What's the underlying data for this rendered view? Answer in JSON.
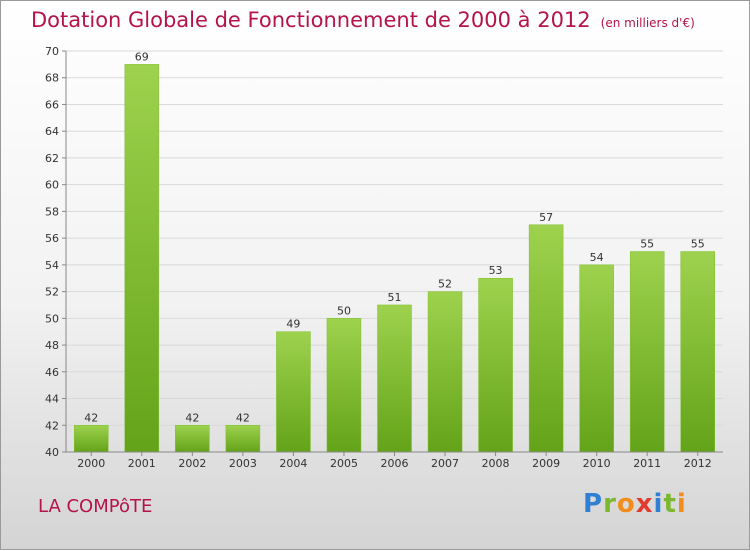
{
  "title": "Dotation Globale de Fonctionnement de 2000 à 2012",
  "subtitle": "(en milliers d'€)",
  "commune": "LA COMPôTE",
  "logo": {
    "letters": [
      "P",
      "r",
      "o",
      "x",
      "i",
      "t",
      "i"
    ],
    "colors": [
      "#2f7fd4",
      "#7cb82f",
      "#f28c1b",
      "#e23b2e",
      "#2f7fd4",
      "#7cb82f",
      "#f28c1b"
    ]
  },
  "colors": {
    "title": "#b5134b",
    "bar_top": "#9ed24e",
    "bar_bottom": "#63a319"
  },
  "chart_data": {
    "type": "bar",
    "categories": [
      "2000",
      "2001",
      "2002",
      "2003",
      "2004",
      "2005",
      "2006",
      "2007",
      "2008",
      "2009",
      "2010",
      "2011",
      "2012"
    ],
    "values": [
      42,
      69,
      42,
      42,
      49,
      50,
      51,
      52,
      53,
      57,
      54,
      55,
      55
    ],
    "ylim": [
      40,
      70
    ],
    "yticks": [
      40,
      42,
      44,
      46,
      48,
      50,
      52,
      54,
      56,
      58,
      60,
      62,
      64,
      66,
      68,
      70
    ],
    "grid": true
  }
}
